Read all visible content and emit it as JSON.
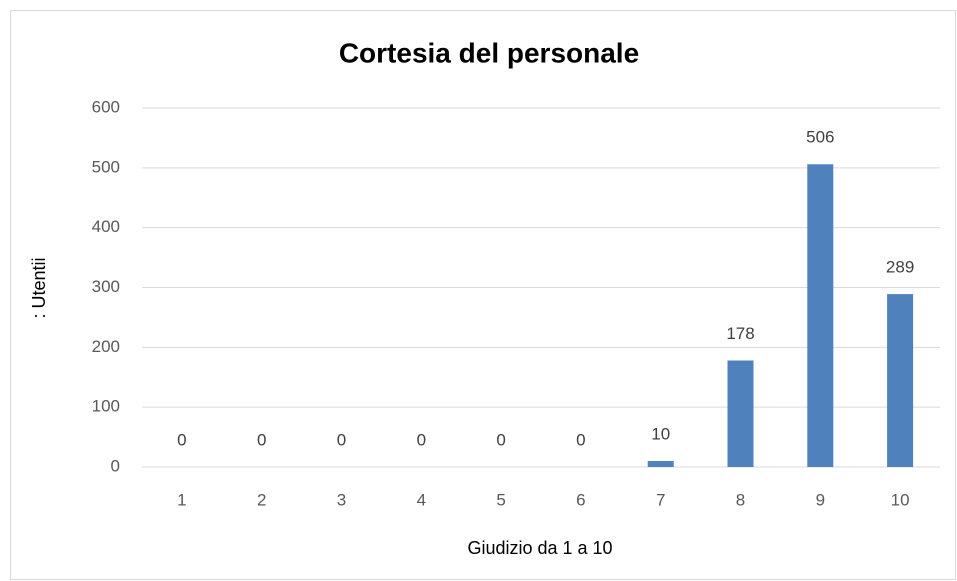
{
  "chart_data": {
    "type": "bar",
    "title": "Cortesia del personale",
    "x_label": "Giudizio da 1 a 10",
    "y_label": ": Utentii",
    "categories": [
      "1",
      "2",
      "3",
      "4",
      "5",
      "6",
      "7",
      "8",
      "9",
      "10"
    ],
    "values": [
      0,
      0,
      0,
      0,
      0,
      0,
      10,
      178,
      506,
      289
    ],
    "color": "#4f81bd",
    "ylim": [
      0,
      600
    ],
    "yticks": [
      0,
      100,
      200,
      300,
      400,
      500,
      600
    ],
    "grid": true,
    "data_labels": true
  }
}
